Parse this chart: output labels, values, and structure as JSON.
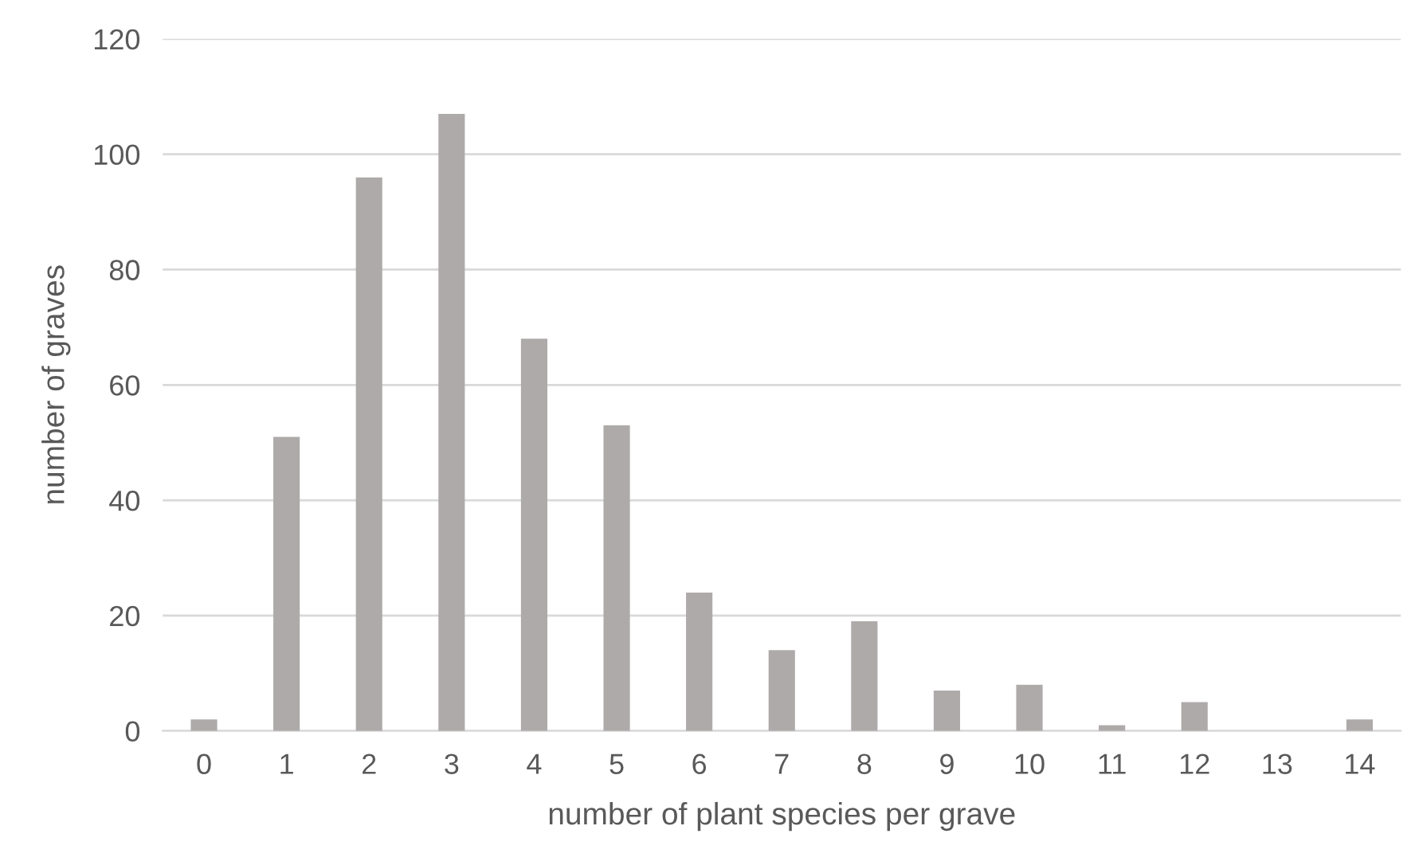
{
  "chart_data": {
    "type": "bar",
    "xlabel": "number of plant species per grave",
    "ylabel": "number of graves",
    "categories": [
      "0",
      "1",
      "2",
      "3",
      "4",
      "5",
      "6",
      "7",
      "8",
      "9",
      "10",
      "11",
      "12",
      "13",
      "14"
    ],
    "values": [
      2,
      51,
      96,
      107,
      68,
      53,
      24,
      14,
      19,
      7,
      8,
      1,
      5,
      0,
      2
    ],
    "color": "#aeaaaa",
    "ylim": [
      0,
      120
    ],
    "yticks": [
      0,
      20,
      40,
      60,
      80,
      100,
      120
    ],
    "grid": "y"
  }
}
